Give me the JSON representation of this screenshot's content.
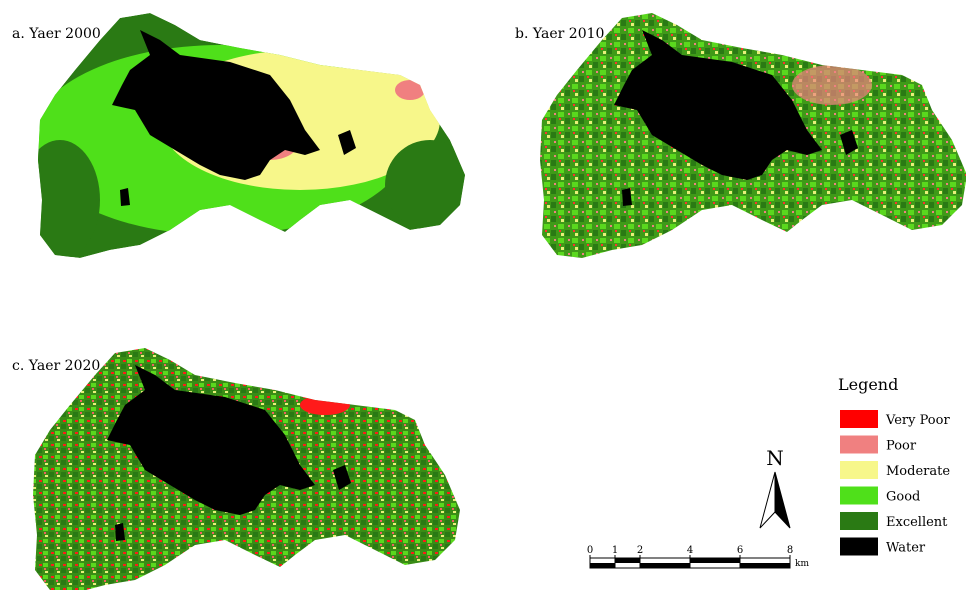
{
  "panels": [
    {
      "label": "a. Yaer 2000"
    },
    {
      "label": "b. Yaer 2010"
    },
    {
      "label": "c. Yaer 2020"
    }
  ],
  "legend": {
    "title": "Legend",
    "items": [
      {
        "label": "Very Poor",
        "color": "#ff0000"
      },
      {
        "label": "Poor",
        "color": "#f08080"
      },
      {
        "label": "Moderate",
        "color": "#f7f78a"
      },
      {
        "label": "Good",
        "color": "#4fe01a"
      },
      {
        "label": "Excellent",
        "color": "#2a7a14"
      },
      {
        "label": "Water",
        "color": "#000000"
      }
    ]
  },
  "north": "N",
  "scale_bar": {
    "ticks": [
      0,
      1,
      2,
      4,
      6,
      8
    ],
    "unit": "km"
  }
}
